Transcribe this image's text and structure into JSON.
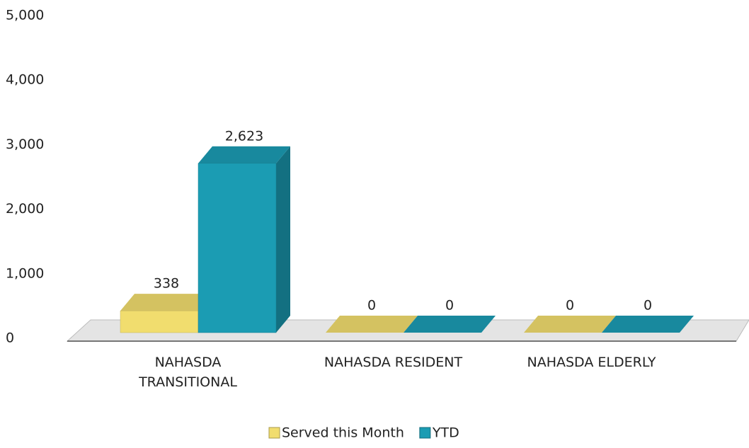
{
  "chart_data": {
    "type": "bar3d",
    "categories": [
      "NAHASDA TRANSITIONAL",
      "NAHASDA RESIDENT",
      "NAHASDA ELDERLY"
    ],
    "series": [
      {
        "name": "Served this Month",
        "color": "#f1dd6e",
        "values": [
          338,
          0,
          0
        ],
        "value_labels": [
          "338",
          "0",
          "0"
        ]
      },
      {
        "name": "YTD",
        "color": "#1b9cb3",
        "values": [
          2623,
          0,
          0
        ],
        "value_labels": [
          "2,623",
          "0",
          "0"
        ]
      }
    ],
    "ylim": [
      0,
      5000
    ],
    "yticks": [
      0,
      {
        "value": 1000,
        "label": "1,000"
      },
      {
        "value": 2000,
        "label": "2,000"
      },
      {
        "value": 3000,
        "label": "3,000"
      },
      {
        "value": 4000,
        "label": "4,000"
      },
      {
        "value": 5000,
        "label": "5,000"
      }
    ],
    "legend": "bottom"
  }
}
